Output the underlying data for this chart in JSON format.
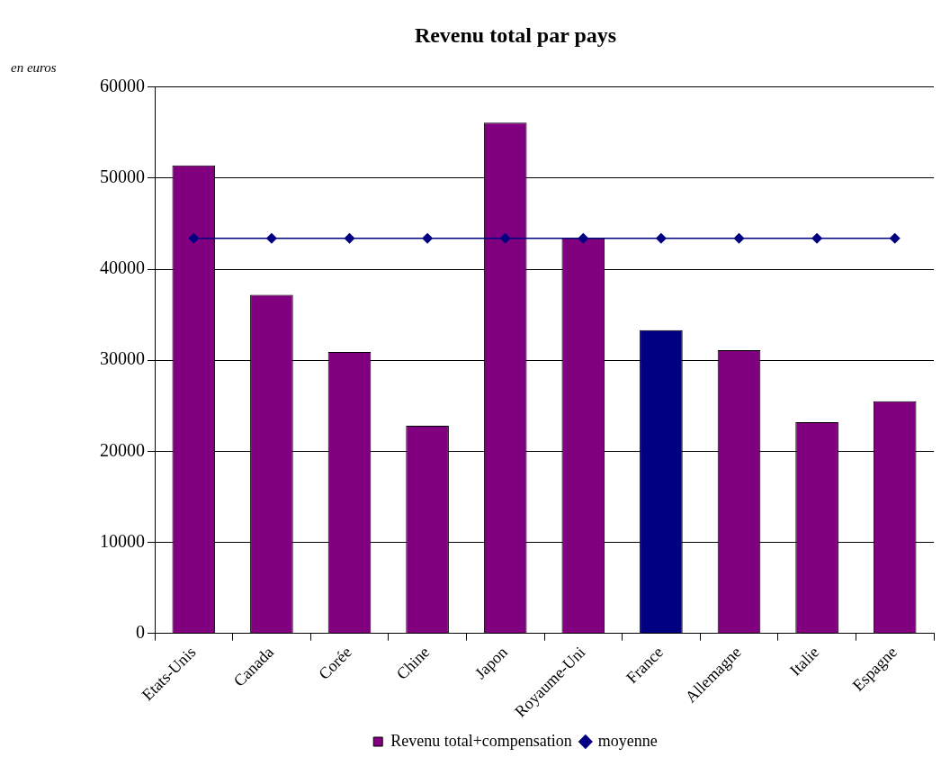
{
  "chart_data": {
    "type": "bar",
    "title": "Revenu total par pays",
    "ylabel": "en euros",
    "categories": [
      "Etats-Unis",
      "Canada",
      "Corée",
      "Chine",
      "Japon",
      "Royaume-Uni",
      "France",
      "Allemagne",
      "Italie",
      "Espagne"
    ],
    "series": [
      {
        "name": "Revenu total+compensation",
        "colors": [
          "#800080",
          "#800080",
          "#800080",
          "#800080",
          "#800080",
          "#800080",
          "#000080",
          "#800080",
          "#800080",
          "#800080"
        ],
        "values": [
          51400,
          37200,
          30900,
          22800,
          56100,
          43400,
          33300,
          31100,
          23200,
          25500
        ]
      },
      {
        "name": "moyenne",
        "type": "line",
        "color": "#000080",
        "marker": "diamond",
        "line_style": "solid",
        "values": [
          43400,
          43400,
          43400,
          43400,
          43400,
          43400,
          43400,
          43400,
          43400,
          43400
        ]
      }
    ],
    "ylim": [
      0,
      60000
    ],
    "yticks": [
      0,
      10000,
      20000,
      30000,
      40000,
      50000,
      60000
    ],
    "grid": "y",
    "legend": "bottom"
  }
}
